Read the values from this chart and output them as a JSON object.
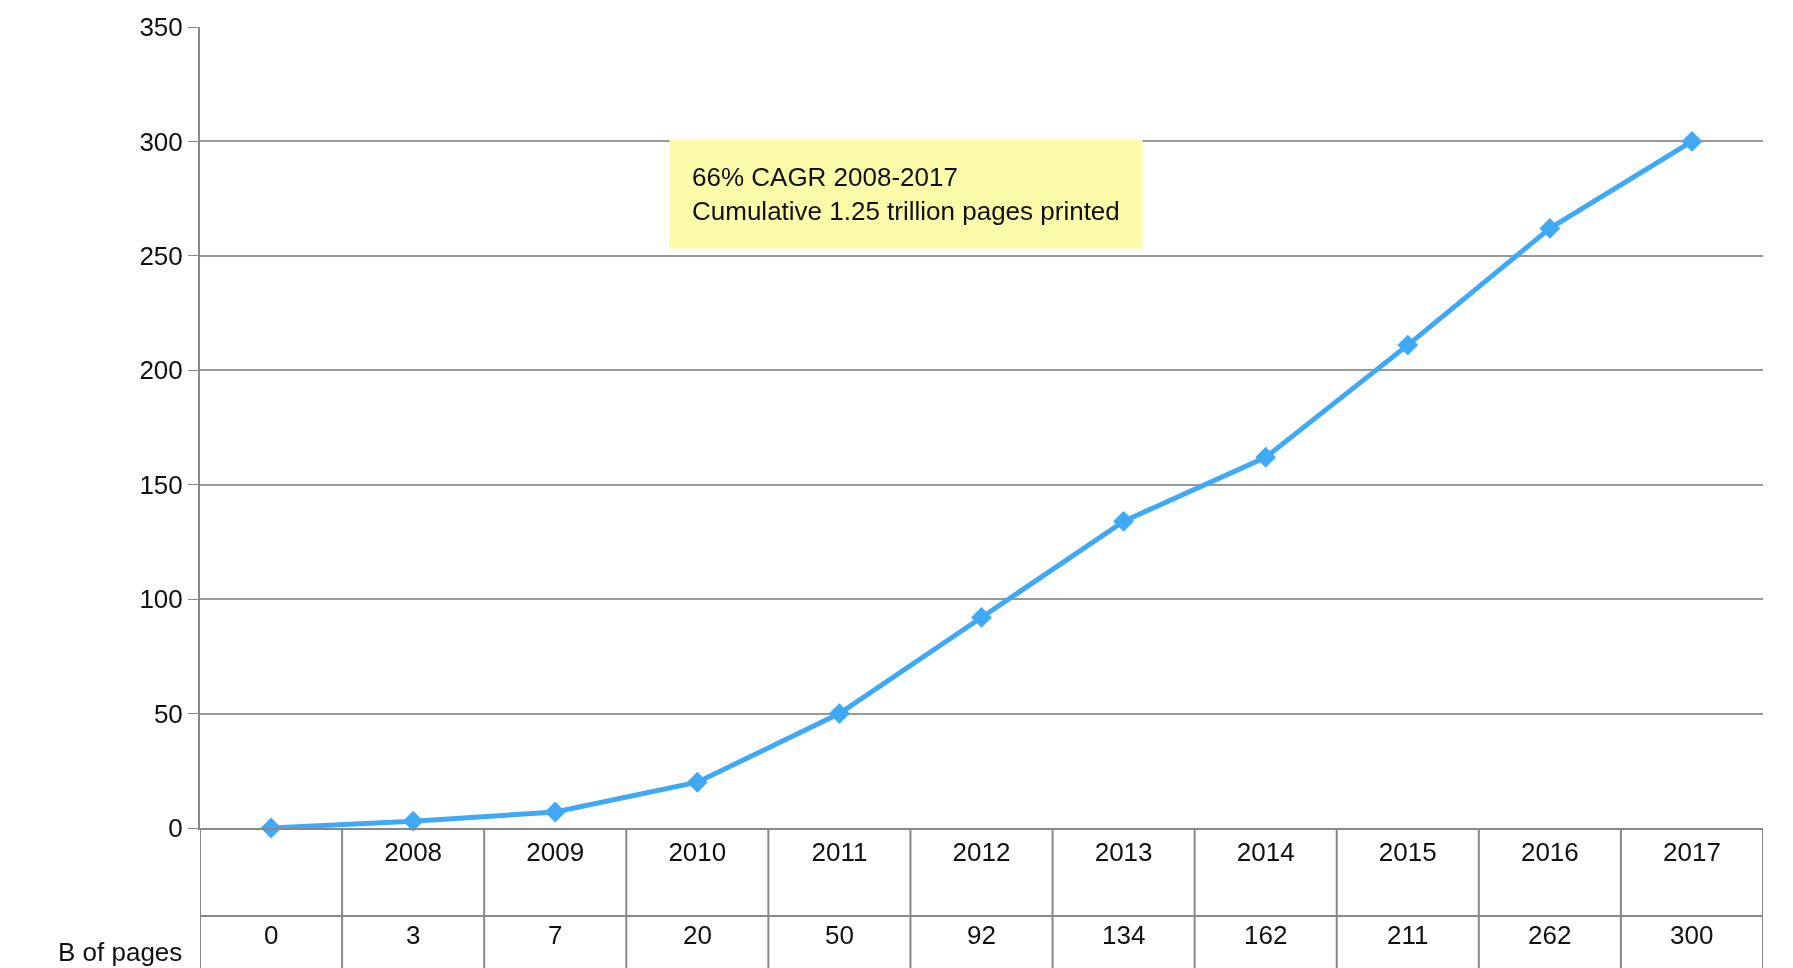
{
  "chart_data": {
    "type": "line",
    "categories": [
      null,
      "2008",
      "2009",
      "2010",
      "2011",
      "2012",
      "2013",
      "2014",
      "2015",
      "2016",
      "2017"
    ],
    "series": [
      {
        "color": "#3fa9f5",
        "values": [
          0,
          3,
          7,
          20,
          50,
          92,
          134,
          162,
          211,
          262,
          300
        ]
      }
    ],
    "ylim": [
      0,
      350
    ],
    "yticks": [
      0,
      50,
      100,
      150,
      200,
      250,
      300,
      350
    ],
    "grid": "y",
    "marker": "diamond",
    "line_style": "solid",
    "data_labels": true,
    "annotations": [
      "66% CAGR 2008-2017\nCumulative 1.25 trillion pages printed",
      "B of pages"
    ]
  }
}
